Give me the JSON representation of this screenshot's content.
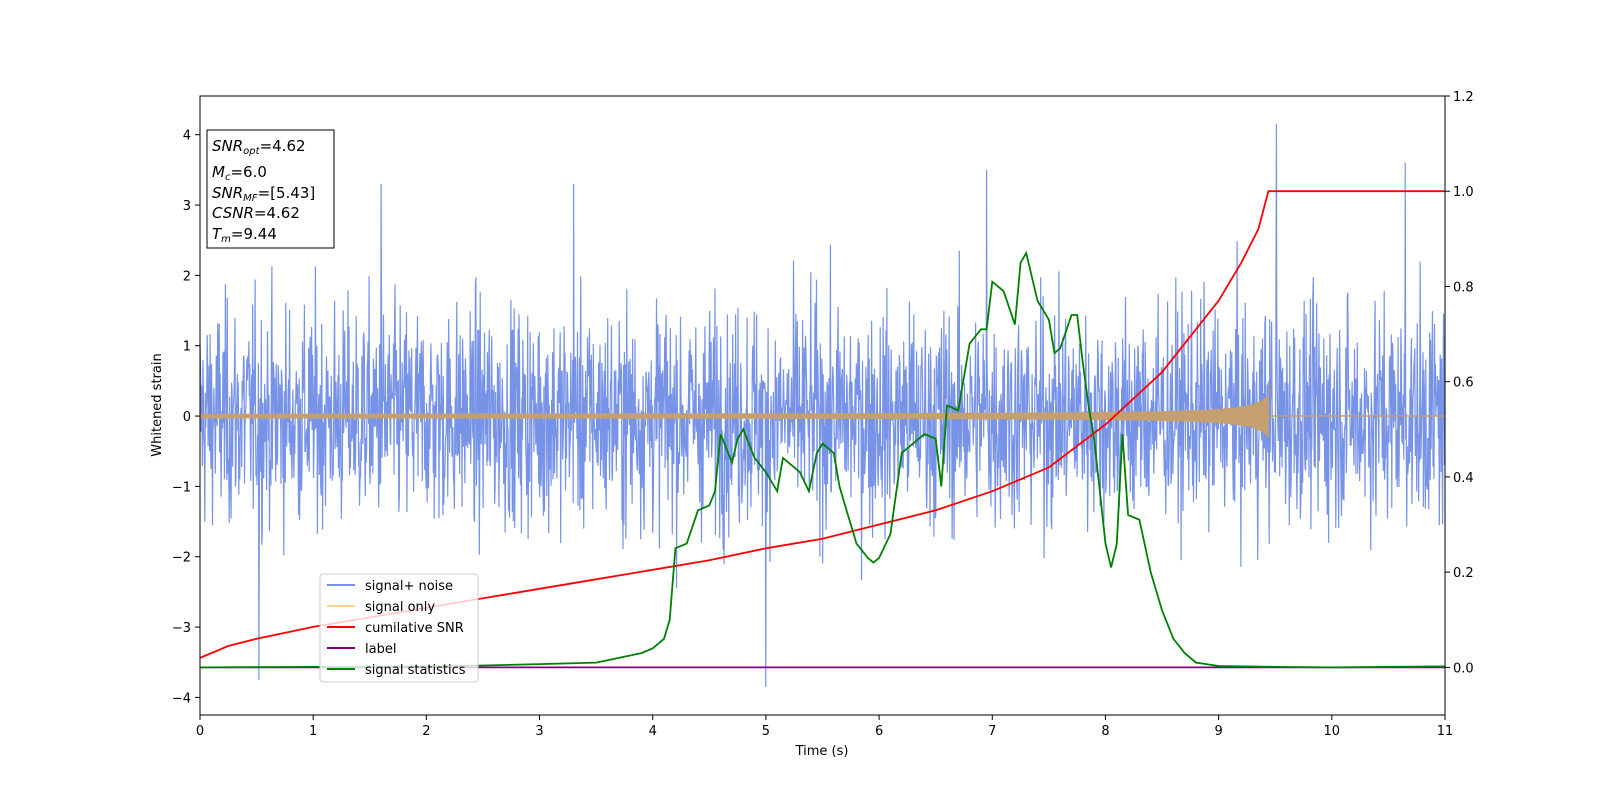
{
  "chart_data": {
    "type": "line",
    "xlabel": "Time (s)",
    "ylabel": "Whitened strain",
    "xlim": [
      0,
      11
    ],
    "ylim": [
      -4.25,
      4.55
    ],
    "y2lim": [
      -0.1,
      1.2
    ],
    "grid": false,
    "legend_position": "lower-left",
    "x_ticks": [
      0,
      1,
      2,
      3,
      4,
      5,
      6,
      7,
      8,
      9,
      10,
      11
    ],
    "y_ticks": [
      4,
      3,
      2,
      1,
      0,
      -1,
      -2,
      -3,
      -4
    ],
    "y_tick_labels": [
      "4",
      "3",
      "2",
      "1",
      "0",
      "−1",
      "−2",
      "−3",
      "−4"
    ],
    "y2_ticks": [
      1.2,
      1.0,
      0.8,
      0.6,
      0.4,
      0.2,
      0.0
    ],
    "y2_tick_labels": [
      "1.2",
      "1.0",
      "0.8",
      "0.6",
      "0.4",
      "0.2",
      "0.0"
    ],
    "info_box": {
      "snr_opt_sym": "SNR",
      "snr_opt_sub": "opt",
      "snr_opt_val": "=4.62",
      "mc_sym": "M",
      "mc_sub": "c",
      "mc_val": "=6.0",
      "snr_mf_sym": "SNR",
      "snr_mf_sub": "MF",
      "snr_mf_val": "=[5.43]",
      "csnr_sym": "CSNR",
      "csnr_val": "=4.62",
      "tm_sym": "T",
      "tm_sub": "m",
      "tm_val": "=9.44"
    },
    "series": [
      {
        "name": "signal+ noise",
        "axis": "left",
        "color": "#7793e8",
        "x_range": [
          0,
          11
        ],
        "amplitude_typical": 1.4,
        "extremes": [
          {
            "x": 0.52,
            "y": -3.75
          },
          {
            "x": 5.0,
            "y": -3.85
          },
          {
            "x": 9.51,
            "y": 4.15
          },
          {
            "x": 10.65,
            "y": 3.6
          },
          {
            "x": 6.95,
            "y": 3.5
          },
          {
            "x": 3.3,
            "y": 3.3
          },
          {
            "x": 1.6,
            "y": 3.3
          }
        ]
      },
      {
        "name": "signal only",
        "axis": "left",
        "color": "#c4a070",
        "x_range": [
          0,
          11
        ],
        "merger_time": 9.44,
        "peak_amplitude": 0.5
      },
      {
        "name": "cumilative SNR",
        "axis": "right",
        "color": "#ff0000",
        "x": [
          0,
          0.25,
          0.5,
          1,
          1.5,
          2,
          2.5,
          3,
          3.5,
          4,
          4.5,
          5,
          5.5,
          6,
          6.5,
          7,
          7.5,
          8,
          8.5,
          9,
          9.2,
          9.35,
          9.44,
          11
        ],
        "y": [
          0.02,
          0.045,
          0.06,
          0.085,
          0.105,
          0.125,
          0.145,
          0.165,
          0.185,
          0.205,
          0.225,
          0.25,
          0.27,
          0.3,
          0.33,
          0.37,
          0.42,
          0.51,
          0.62,
          0.77,
          0.85,
          0.92,
          1.0,
          1.0
        ]
      },
      {
        "name": "label",
        "axis": "right",
        "color": "#800080",
        "x": [
          0,
          11
        ],
        "y": [
          0,
          0
        ]
      },
      {
        "name": "signal statistics",
        "axis": "right",
        "color": "#008000",
        "x": [
          0,
          1,
          2,
          2.5,
          3,
          3.5,
          3.6,
          3.7,
          3.8,
          3.9,
          4.0,
          4.1,
          4.15,
          4.2,
          4.3,
          4.4,
          4.5,
          4.55,
          4.6,
          4.7,
          4.75,
          4.8,
          4.85,
          4.9,
          5.0,
          5.1,
          5.15,
          5.2,
          5.3,
          5.38,
          5.45,
          5.5,
          5.6,
          5.65,
          5.7,
          5.8,
          5.9,
          5.95,
          6.0,
          6.1,
          6.2,
          6.3,
          6.4,
          6.5,
          6.55,
          6.6,
          6.7,
          6.8,
          6.9,
          6.95,
          7.0,
          7.1,
          7.2,
          7.25,
          7.3,
          7.4,
          7.5,
          7.55,
          7.6,
          7.7,
          7.75,
          7.8,
          7.85,
          7.9,
          8.0,
          8.05,
          8.1,
          8.15,
          8.2,
          8.3,
          8.4,
          8.5,
          8.6,
          8.7,
          8.8,
          9.0,
          9.5,
          10,
          11
        ],
        "y": [
          0,
          0.001,
          0.002,
          0.004,
          0.007,
          0.01,
          0.015,
          0.02,
          0.025,
          0.03,
          0.04,
          0.06,
          0.1,
          0.25,
          0.26,
          0.33,
          0.34,
          0.37,
          0.49,
          0.43,
          0.48,
          0.5,
          0.47,
          0.44,
          0.41,
          0.37,
          0.44,
          0.43,
          0.41,
          0.37,
          0.45,
          0.47,
          0.45,
          0.38,
          0.34,
          0.26,
          0.23,
          0.22,
          0.23,
          0.28,
          0.45,
          0.47,
          0.49,
          0.48,
          0.38,
          0.55,
          0.54,
          0.68,
          0.71,
          0.71,
          0.81,
          0.79,
          0.72,
          0.85,
          0.87,
          0.77,
          0.73,
          0.66,
          0.67,
          0.74,
          0.74,
          0.64,
          0.55,
          0.48,
          0.26,
          0.21,
          0.26,
          0.49,
          0.32,
          0.31,
          0.2,
          0.12,
          0.06,
          0.03,
          0.01,
          0.003,
          0.001,
          0,
          0.002
        ]
      }
    ]
  }
}
